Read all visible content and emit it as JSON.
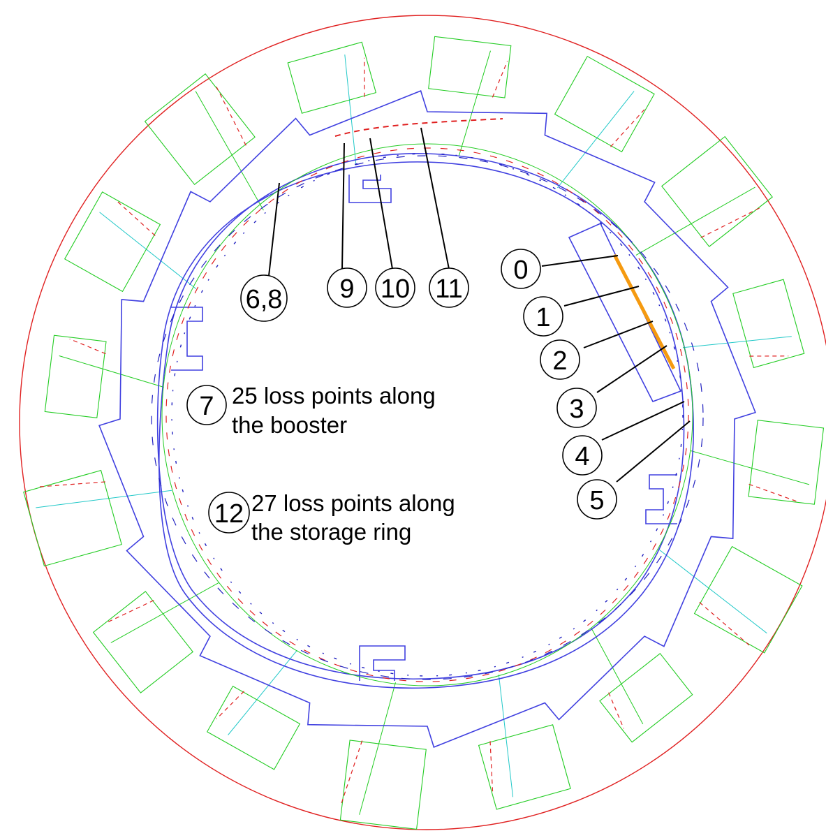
{
  "markers": [
    {
      "id": "marker-0",
      "label": "0"
    },
    {
      "id": "marker-1",
      "label": "1"
    },
    {
      "id": "marker-2",
      "label": "2"
    },
    {
      "id": "marker-3",
      "label": "3"
    },
    {
      "id": "marker-4",
      "label": "4"
    },
    {
      "id": "marker-5",
      "label": "5"
    },
    {
      "id": "marker-6-8",
      "label": "6,8"
    },
    {
      "id": "marker-7",
      "label": "7"
    },
    {
      "id": "marker-9",
      "label": "9"
    },
    {
      "id": "marker-10",
      "label": "10"
    },
    {
      "id": "marker-11",
      "label": "11"
    },
    {
      "id": "marker-12",
      "label": "12"
    }
  ],
  "notes": {
    "booster_line1": "25 loss points along",
    "booster_line2": "the booster",
    "ring_line1": "27 loss points along",
    "ring_line2": "the storage ring"
  },
  "colors": {
    "outer_boundary": "#e02020",
    "shield_wall": "#4040e0",
    "zones": "#22cc22",
    "transfer_line": "#e02020",
    "linac_highlight": "#f59a10",
    "beamline": "#20c8c8",
    "text": "#000000"
  }
}
